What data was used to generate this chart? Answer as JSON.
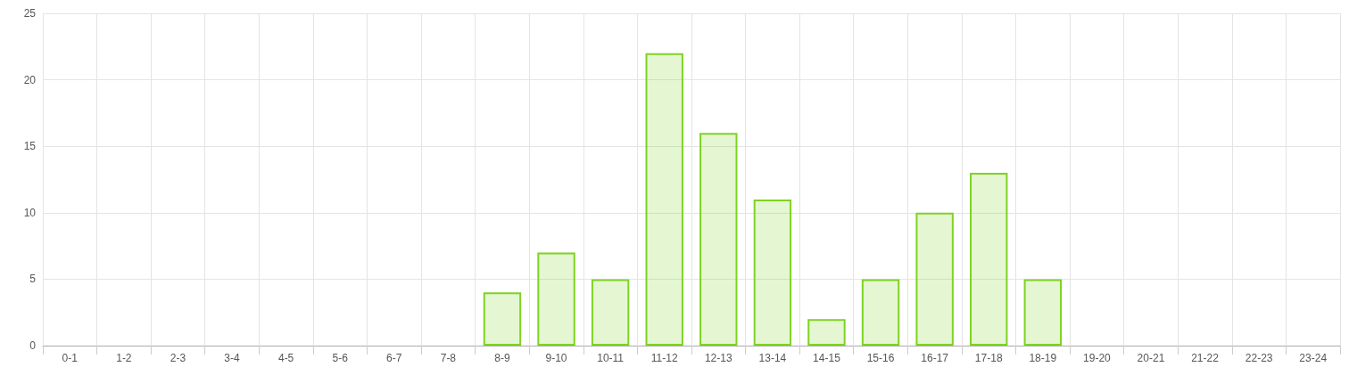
{
  "chart_data": {
    "type": "bar",
    "categories": [
      "0-1",
      "1-2",
      "2-3",
      "3-4",
      "4-5",
      "5-6",
      "6-7",
      "7-8",
      "8-9",
      "9-10",
      "10-11",
      "11-12",
      "12-13",
      "13-14",
      "14-15",
      "15-16",
      "16-17",
      "17-18",
      "18-19",
      "19-20",
      "20-21",
      "21-22",
      "22-23",
      "23-24"
    ],
    "values": [
      0,
      0,
      0,
      0,
      0,
      0,
      0,
      0,
      4,
      7,
      5,
      22,
      16,
      11,
      2,
      5,
      10,
      13,
      5,
      0,
      0,
      0,
      0,
      0
    ],
    "color": "#7ed321",
    "ylim": [
      0,
      25
    ],
    "yticks": [
      0,
      5,
      10,
      15,
      20,
      25
    ],
    "grid": true
  }
}
